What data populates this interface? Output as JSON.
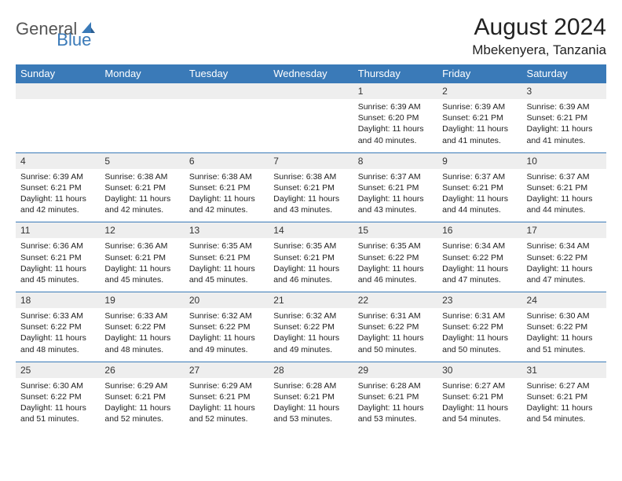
{
  "brand": {
    "part1": "General",
    "part2": "Blue"
  },
  "title": "August 2024",
  "location": "Mbekenyera, Tanzania",
  "colors": {
    "header_bg": "#3a7ab8",
    "header_fg": "#ffffff",
    "daynum_bg": "#eeeeee",
    "row_border": "#3a7ab8",
    "logo_gray": "#555555",
    "logo_blue": "#3a7ab8"
  },
  "days_of_week": [
    "Sunday",
    "Monday",
    "Tuesday",
    "Wednesday",
    "Thursday",
    "Friday",
    "Saturday"
  ],
  "weeks": [
    [
      null,
      null,
      null,
      null,
      {
        "n": "1",
        "sr": "6:39 AM",
        "ss": "6:20 PM",
        "dl": "11 hours and 40 minutes."
      },
      {
        "n": "2",
        "sr": "6:39 AM",
        "ss": "6:21 PM",
        "dl": "11 hours and 41 minutes."
      },
      {
        "n": "3",
        "sr": "6:39 AM",
        "ss": "6:21 PM",
        "dl": "11 hours and 41 minutes."
      }
    ],
    [
      {
        "n": "4",
        "sr": "6:39 AM",
        "ss": "6:21 PM",
        "dl": "11 hours and 42 minutes."
      },
      {
        "n": "5",
        "sr": "6:38 AM",
        "ss": "6:21 PM",
        "dl": "11 hours and 42 minutes."
      },
      {
        "n": "6",
        "sr": "6:38 AM",
        "ss": "6:21 PM",
        "dl": "11 hours and 42 minutes."
      },
      {
        "n": "7",
        "sr": "6:38 AM",
        "ss": "6:21 PM",
        "dl": "11 hours and 43 minutes."
      },
      {
        "n": "8",
        "sr": "6:37 AM",
        "ss": "6:21 PM",
        "dl": "11 hours and 43 minutes."
      },
      {
        "n": "9",
        "sr": "6:37 AM",
        "ss": "6:21 PM",
        "dl": "11 hours and 44 minutes."
      },
      {
        "n": "10",
        "sr": "6:37 AM",
        "ss": "6:21 PM",
        "dl": "11 hours and 44 minutes."
      }
    ],
    [
      {
        "n": "11",
        "sr": "6:36 AM",
        "ss": "6:21 PM",
        "dl": "11 hours and 45 minutes."
      },
      {
        "n": "12",
        "sr": "6:36 AM",
        "ss": "6:21 PM",
        "dl": "11 hours and 45 minutes."
      },
      {
        "n": "13",
        "sr": "6:35 AM",
        "ss": "6:21 PM",
        "dl": "11 hours and 45 minutes."
      },
      {
        "n": "14",
        "sr": "6:35 AM",
        "ss": "6:21 PM",
        "dl": "11 hours and 46 minutes."
      },
      {
        "n": "15",
        "sr": "6:35 AM",
        "ss": "6:22 PM",
        "dl": "11 hours and 46 minutes."
      },
      {
        "n": "16",
        "sr": "6:34 AM",
        "ss": "6:22 PM",
        "dl": "11 hours and 47 minutes."
      },
      {
        "n": "17",
        "sr": "6:34 AM",
        "ss": "6:22 PM",
        "dl": "11 hours and 47 minutes."
      }
    ],
    [
      {
        "n": "18",
        "sr": "6:33 AM",
        "ss": "6:22 PM",
        "dl": "11 hours and 48 minutes."
      },
      {
        "n": "19",
        "sr": "6:33 AM",
        "ss": "6:22 PM",
        "dl": "11 hours and 48 minutes."
      },
      {
        "n": "20",
        "sr": "6:32 AM",
        "ss": "6:22 PM",
        "dl": "11 hours and 49 minutes."
      },
      {
        "n": "21",
        "sr": "6:32 AM",
        "ss": "6:22 PM",
        "dl": "11 hours and 49 minutes."
      },
      {
        "n": "22",
        "sr": "6:31 AM",
        "ss": "6:22 PM",
        "dl": "11 hours and 50 minutes."
      },
      {
        "n": "23",
        "sr": "6:31 AM",
        "ss": "6:22 PM",
        "dl": "11 hours and 50 minutes."
      },
      {
        "n": "24",
        "sr": "6:30 AM",
        "ss": "6:22 PM",
        "dl": "11 hours and 51 minutes."
      }
    ],
    [
      {
        "n": "25",
        "sr": "6:30 AM",
        "ss": "6:22 PM",
        "dl": "11 hours and 51 minutes."
      },
      {
        "n": "26",
        "sr": "6:29 AM",
        "ss": "6:21 PM",
        "dl": "11 hours and 52 minutes."
      },
      {
        "n": "27",
        "sr": "6:29 AM",
        "ss": "6:21 PM",
        "dl": "11 hours and 52 minutes."
      },
      {
        "n": "28",
        "sr": "6:28 AM",
        "ss": "6:21 PM",
        "dl": "11 hours and 53 minutes."
      },
      {
        "n": "29",
        "sr": "6:28 AM",
        "ss": "6:21 PM",
        "dl": "11 hours and 53 minutes."
      },
      {
        "n": "30",
        "sr": "6:27 AM",
        "ss": "6:21 PM",
        "dl": "11 hours and 54 minutes."
      },
      {
        "n": "31",
        "sr": "6:27 AM",
        "ss": "6:21 PM",
        "dl": "11 hours and 54 minutes."
      }
    ]
  ],
  "labels": {
    "sunrise": "Sunrise:",
    "sunset": "Sunset:",
    "daylight": "Daylight:"
  }
}
